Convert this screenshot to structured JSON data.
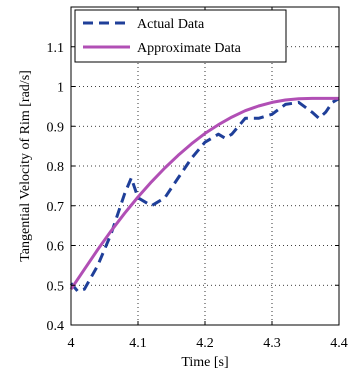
{
  "chart_data": {
    "type": "line",
    "title": "",
    "xlabel": "Time [s]",
    "ylabel": "Tangential Velocity of Rim [rad/s]",
    "xlim": [
      4.0,
      4.4
    ],
    "ylim": [
      0.4,
      1.2
    ],
    "xticks": [
      4.0,
      4.1,
      4.2,
      4.3,
      4.4
    ],
    "xtick_labels": [
      "4",
      "4.1",
      "4.2",
      "4.3",
      "4.4"
    ],
    "yticks": [
      0.4,
      0.5,
      0.6,
      0.7,
      0.8,
      0.9,
      1.0,
      1.1
    ],
    "ytick_labels": [
      "0.4",
      "0.5",
      "0.6",
      "0.7",
      "0.8",
      "0.9",
      "1",
      "1.1"
    ],
    "grid": true,
    "legend_position": "top-left",
    "series": [
      {
        "name": "Actual Data",
        "style": "dashed",
        "color": "#1f3f99",
        "x": [
          4.0,
          4.01,
          4.02,
          4.04,
          4.06,
          4.08,
          4.09,
          4.1,
          4.12,
          4.14,
          4.16,
          4.18,
          4.2,
          4.22,
          4.23,
          4.24,
          4.26,
          4.28,
          4.3,
          4.32,
          4.34,
          4.36,
          4.37,
          4.38,
          4.39,
          4.4
        ],
        "y": [
          0.505,
          0.485,
          0.49,
          0.55,
          0.63,
          0.73,
          0.77,
          0.72,
          0.7,
          0.72,
          0.77,
          0.82,
          0.86,
          0.88,
          0.87,
          0.88,
          0.92,
          0.92,
          0.93,
          0.955,
          0.96,
          0.935,
          0.92,
          0.935,
          0.96,
          0.97
        ]
      },
      {
        "name": "Approximate Data",
        "style": "solid",
        "color": "#b14fb5",
        "x": [
          4.0,
          4.02,
          4.04,
          4.06,
          4.08,
          4.1,
          4.12,
          4.14,
          4.16,
          4.18,
          4.2,
          4.22,
          4.24,
          4.26,
          4.28,
          4.3,
          4.32,
          4.34,
          4.36,
          4.38,
          4.4
        ],
        "y": [
          0.49,
          0.54,
          0.59,
          0.637,
          0.681,
          0.722,
          0.76,
          0.795,
          0.827,
          0.856,
          0.882,
          0.904,
          0.923,
          0.939,
          0.951,
          0.96,
          0.966,
          0.969,
          0.97,
          0.97,
          0.97
        ]
      }
    ]
  }
}
